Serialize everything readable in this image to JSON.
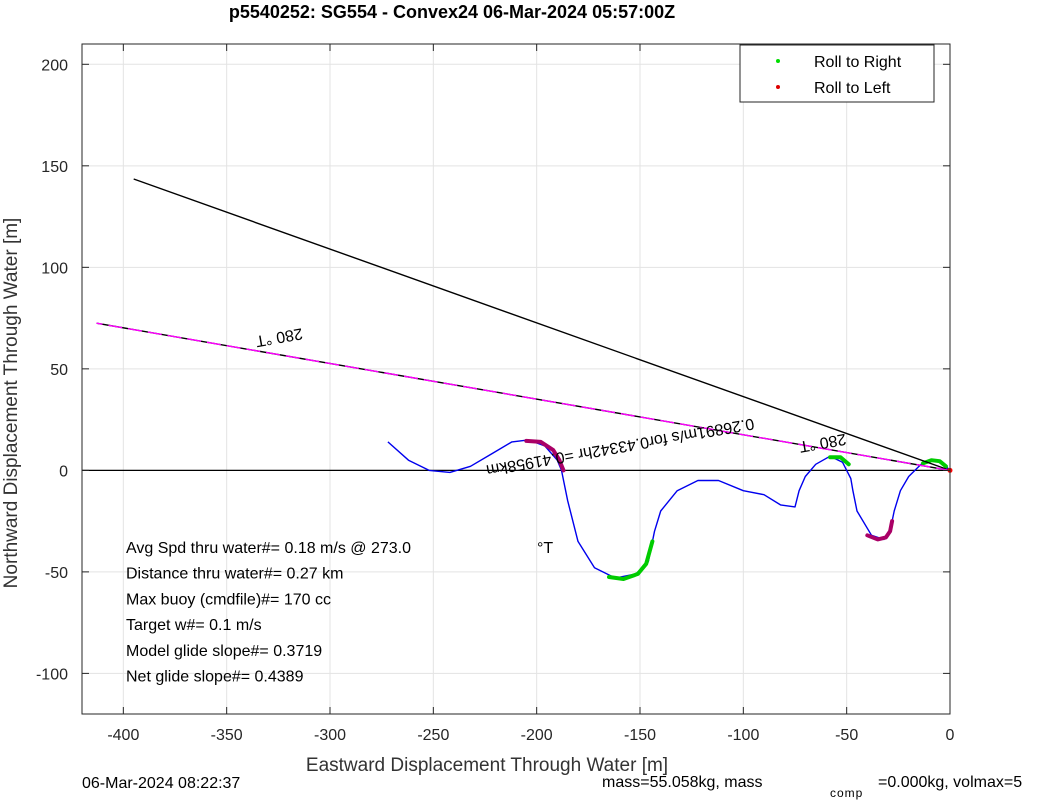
{
  "chart_data": {
    "type": "line",
    "title": "p5540252: SG554 - Convex24 06-Mar-2024 05:57:00Z",
    "xlabel": "Eastward Displacement Through Water [m]",
    "ylabel": "Northward Displacement Through Water [m]",
    "xlim": [
      -420,
      0
    ],
    "ylim": [
      -120,
      210
    ],
    "xticks": [
      -400,
      -350,
      -300,
      -250,
      -200,
      -150,
      -100,
      -50,
      0
    ],
    "yticks": [
      -100,
      -50,
      0,
      50,
      100,
      150,
      200
    ],
    "grid": true,
    "legend": {
      "placement": "top-right",
      "entries": [
        {
          "label": "Roll to Right",
          "color": "#00dd00"
        },
        {
          "label": "Roll to Left",
          "color": "#dd0000"
        }
      ]
    },
    "series": [
      {
        "role": "track",
        "color": "#0000ee",
        "x": [
          -272,
          -262,
          -252,
          -242,
          -232,
          -222,
          -212,
          -204,
          -196,
          -190,
          -188,
          -185,
          -180,
          -172,
          -162,
          -152,
          -146,
          -143,
          -140,
          -132,
          -122,
          -112,
          -100,
          -90,
          -82,
          -75,
          -73,
          -70,
          -65,
          -58,
          -52,
          -50,
          -48,
          -47,
          -45,
          -38,
          -32,
          -29,
          -28,
          -27,
          -24,
          -20,
          -14,
          -8,
          -3,
          0
        ],
        "y": [
          14,
          5,
          0,
          -1,
          2,
          8,
          14,
          15,
          12,
          5,
          0,
          -15,
          -35,
          -48,
          -53,
          -51,
          -45,
          -30,
          -20,
          -10,
          -5,
          -5,
          -10,
          -12,
          -17,
          -18,
          -10,
          -3,
          3,
          7,
          4,
          0,
          -4,
          -10,
          -20,
          -32,
          -34,
          -30,
          -25,
          -20,
          -10,
          -3,
          3,
          5,
          3,
          0
        ]
      },
      {
        "role": "roll-right",
        "color": "#00cc00",
        "x": [
          -165,
          -158,
          -151,
          -147,
          -144
        ],
        "y": [
          -52.5,
          -53.5,
          -51,
          -46,
          -35
        ]
      },
      {
        "role": "roll-right",
        "color": "#00cc00",
        "x": [
          -58,
          -53,
          -49
        ],
        "y": [
          6.5,
          6.5,
          3
        ]
      },
      {
        "role": "roll-right",
        "color": "#00cc00",
        "x": [
          -13,
          -9,
          -5,
          -2
        ],
        "y": [
          3.5,
          5,
          4.5,
          2
        ]
      },
      {
        "role": "roll-left",
        "color": "#aa0066",
        "x": [
          -205,
          -198,
          -192,
          -189,
          -187
        ],
        "y": [
          14.5,
          14,
          10,
          5,
          0
        ]
      },
      {
        "role": "roll-left",
        "color": "#aa0066",
        "x": [
          -40,
          -35,
          -31,
          -29,
          -28
        ],
        "y": [
          -32,
          -34,
          -33,
          -30,
          -25
        ]
      },
      {
        "role": "heading-line",
        "color": "#000000",
        "x": [
          0,
          -395
        ],
        "y": [
          0,
          143.5
        ]
      },
      {
        "role": "current-line",
        "color": "#ff00ff",
        "x": [
          0,
          -413
        ],
        "y": [
          0,
          72.5
        ]
      }
    ],
    "annotations": [
      {
        "text": "280  °T",
        "x": -325,
        "y": 68,
        "rotation": 170
      },
      {
        "text": "280  °T",
        "x": -62,
        "y": 16,
        "rotation": 170
      },
      {
        "text": "0.26891m/s for0.43342hr =0.41958km",
        "x": -160,
        "y": 14,
        "rotation": 170
      }
    ],
    "stats": [
      "Avg Spd thru water#=  0.18 m/s @ 273.0",
      "Distance thru water#=  0.27 km",
      "Max buoy (cmdfile)#= 170 cc",
      "Target w#= 0.1 m/s",
      "Model glide slope#= 0.3719",
      "Net glide slope#= 0.4389"
    ],
    "stats_unit": "°T"
  },
  "footer": {
    "timestamp": "06-Mar-2024 08:22:37",
    "mass_prefix": "mass=55.058kg, mass",
    "mass_sub": "comp",
    "mass_suffix": "=0.000kg, volmax=5"
  }
}
